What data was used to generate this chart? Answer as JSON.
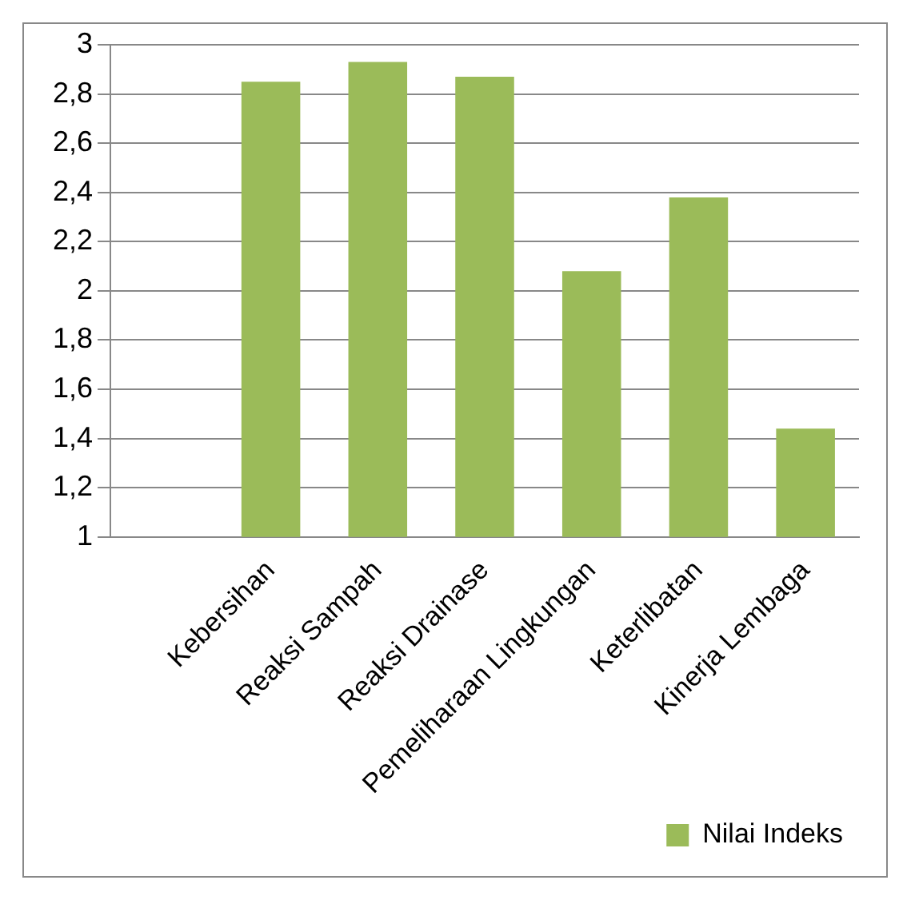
{
  "chart_data": {
    "type": "bar",
    "categories": [
      null,
      "Kebersihan",
      "Reaksi Sampah",
      "Reaksi Drainase",
      "Pemeliharaan Lingkungan",
      "Keterlibatan",
      "Kinerja Lembaga"
    ],
    "series": [
      {
        "name": "Nilai Indeks",
        "color": "#9bbb59",
        "values": [
          null,
          2.85,
          2.93,
          2.87,
          2.08,
          2.38,
          1.44
        ]
      }
    ],
    "ylim": [
      1,
      3
    ],
    "yticks": [
      1,
      {
        "value": 1.2,
        "label": "1,2"
      },
      {
        "value": 1.4,
        "label": "1,4"
      },
      {
        "value": 1.6,
        "label": "1,6"
      },
      {
        "value": 1.8,
        "label": "1,8"
      },
      2,
      {
        "value": 2.2,
        "label": "2,2"
      },
      {
        "value": 2.4,
        "label": "2,4"
      },
      {
        "value": 2.6,
        "label": "2,6"
      },
      {
        "value": 2.8,
        "label": "2,8"
      },
      3
    ],
    "grid": "y",
    "legend": "bottom right"
  }
}
